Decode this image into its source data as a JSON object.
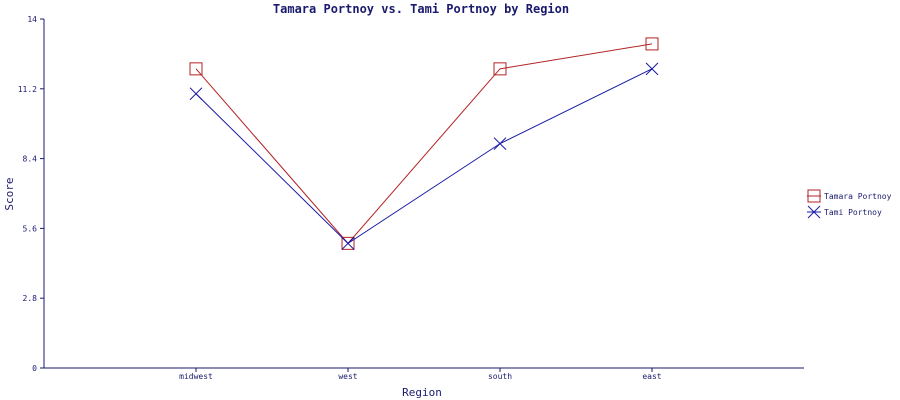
{
  "chart_data": {
    "type": "line",
    "title": "Tamara Portnoy vs. Tami Portnoy by Region",
    "xlabel": "Region",
    "ylabel": "Score",
    "categories": [
      "midwest",
      "west",
      "south",
      "east"
    ],
    "ylim": [
      0,
      14
    ],
    "yticks": [
      "0",
      "2.8",
      "5.6",
      "8.4",
      "11.2",
      "14"
    ],
    "grid": false,
    "legend_position": "right",
    "series": [
      {
        "name": "Tamara Portnoy",
        "values": [
          12,
          5,
          12,
          13
        ],
        "color": "#b22222",
        "marker": "square"
      },
      {
        "name": "Tami Portnoy",
        "values": [
          11,
          5,
          9,
          12
        ],
        "color": "#1a1aa6",
        "marker": "x"
      }
    ]
  }
}
